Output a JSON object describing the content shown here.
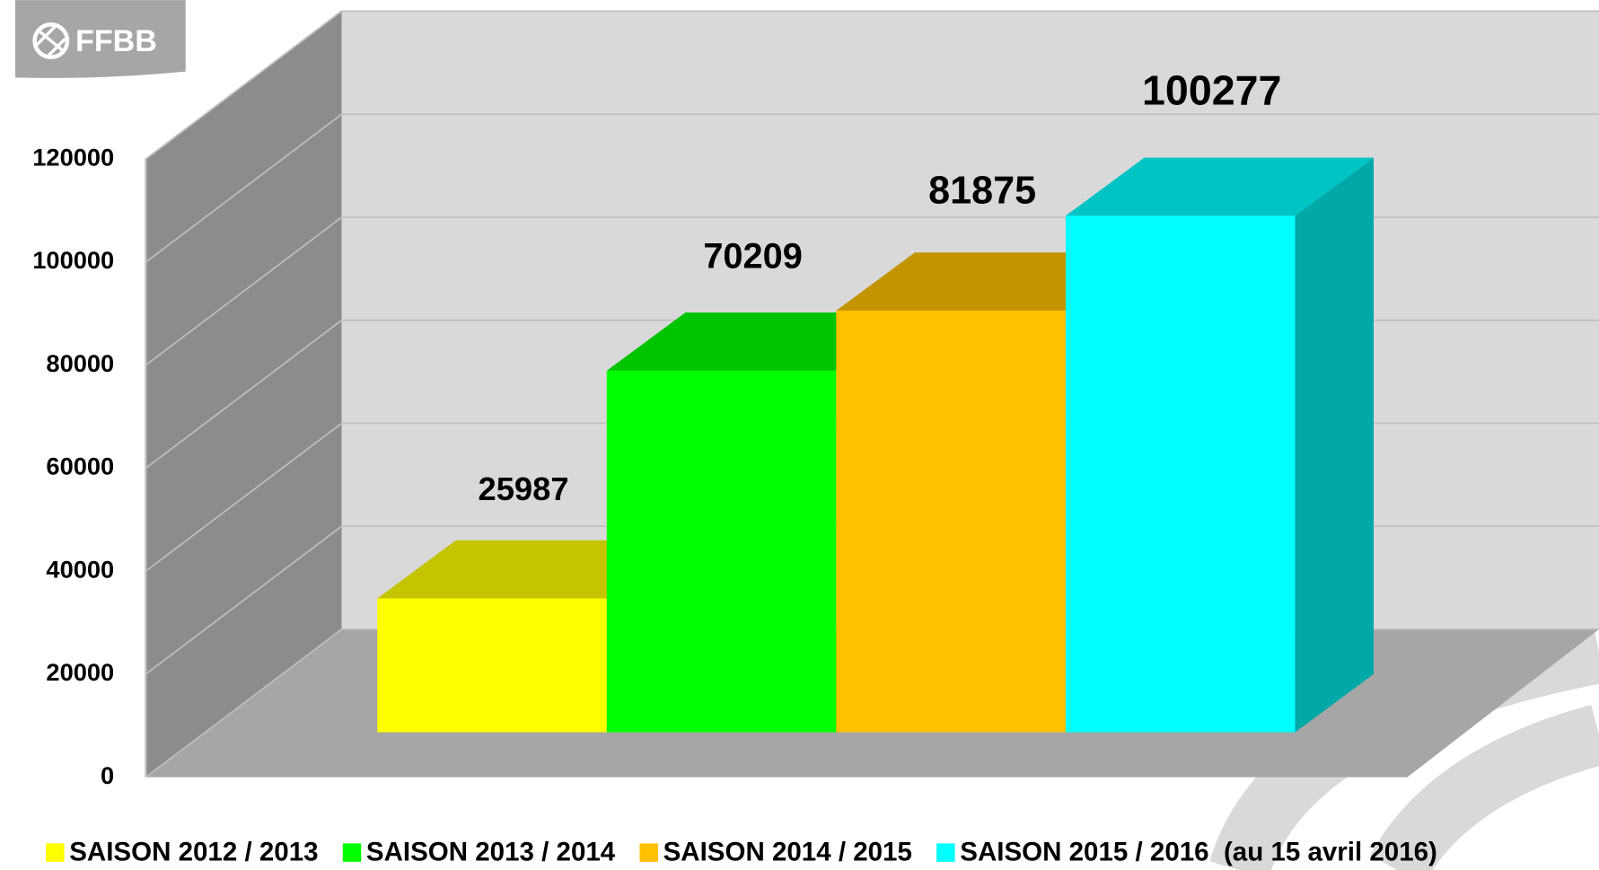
{
  "logo": "FFBB",
  "chart_data": {
    "type": "bar3d",
    "series": [
      {
        "name": "SAISON 2012 / 2013",
        "color": "#ffff00",
        "values": [
          25987
        ]
      },
      {
        "name": "SAISON 2013 / 2014",
        "color": "#00ff00",
        "values": [
          70209
        ]
      },
      {
        "name": "SAISON 2014 / 2015",
        "color": "#ffc000",
        "values": [
          81875
        ]
      },
      {
        "name": "SAISON 2015 / 2016  (au 15 avril 2016)",
        "color": "#00ffff",
        "values": [
          100277
        ]
      }
    ],
    "ylim": [
      0,
      120000
    ],
    "yticks": [
      0,
      20000,
      40000,
      60000,
      80000,
      100000,
      120000
    ],
    "grid": true,
    "legend": "bottom"
  }
}
